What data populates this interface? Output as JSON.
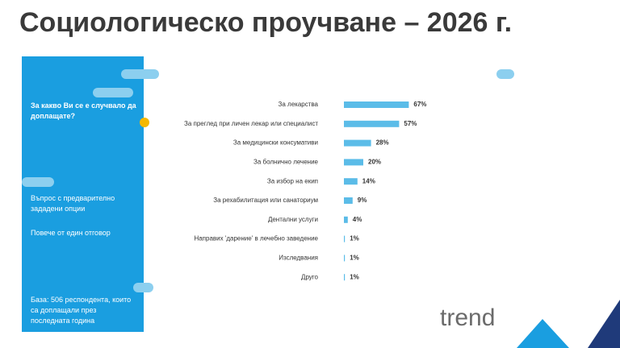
{
  "chart_data": {
    "type": "bar",
    "orientation": "horizontal",
    "title": "Социологическо проучване – 2026 г.",
    "categories": [
      "За лекарства",
      "За преглед при личен лекар или специалист",
      "За медицински консумативи",
      "За болнично лечение",
      "За избор на екип",
      "За рехабилитация или санаториум",
      "Дентални услуги",
      "Направих 'дарение' в лечебно заведение",
      "Изследвания",
      "Друго"
    ],
    "values": [
      67,
      57,
      28,
      20,
      14,
      9,
      4,
      1,
      1,
      1
    ],
    "value_labels": [
      "67%",
      "57%",
      "28%",
      "20%",
      "14%",
      "9%",
      "4%",
      "1%",
      "1%",
      "1%"
    ],
    "color": "#5bbce8"
  },
  "slide": {
    "question": "За какво Ви се е случвало да доплащате?",
    "note1": "Въпрос с предварително зададени опции",
    "note2": "Повече от един отговор",
    "base": "База: 506 респондента, които са доплащали през последната година",
    "logo": "trend"
  }
}
